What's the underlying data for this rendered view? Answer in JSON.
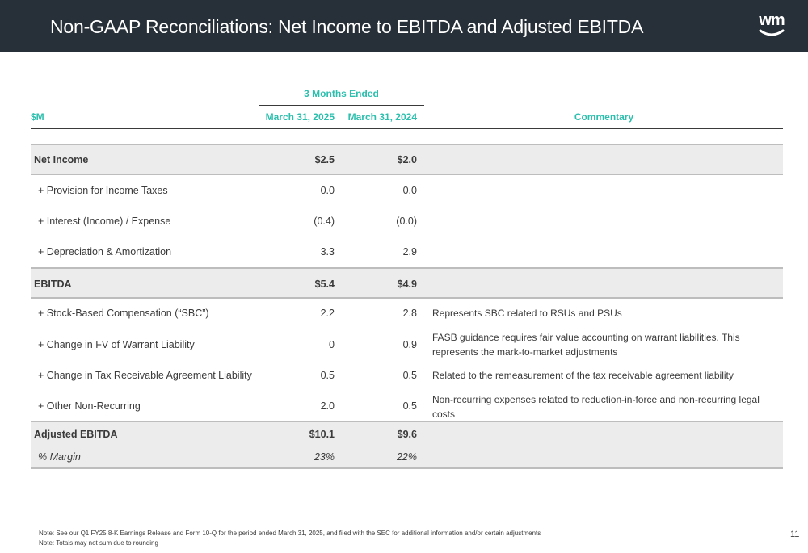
{
  "header": {
    "title": "Non-GAAP Reconciliations: Net Income to EBITDA and Adjusted EBITDA",
    "logo_text": "wm",
    "background_color": "#273038"
  },
  "table": {
    "group_header": "3 Months Ended",
    "columns": {
      "label": "$M",
      "period1": "March 31, 2025",
      "period2": "March 31, 2024",
      "commentary": "Commentary"
    },
    "accent_color": "#2bbfae",
    "rows": [
      {
        "label": "Net Income",
        "v1": "$2.5",
        "v2": "$2.0",
        "commentary": ""
      },
      {
        "label": "+ Provision for Income Taxes",
        "v1": "0.0",
        "v2": "0.0",
        "commentary": ""
      },
      {
        "label": "+ Interest (Income) / Expense",
        "v1": "(0.4)",
        "v2": "(0.0)",
        "commentary": ""
      },
      {
        "label": "+ Depreciation & Amortization",
        "v1": "3.3",
        "v2": "2.9",
        "commentary": ""
      },
      {
        "label": "EBITDA",
        "v1": "$5.4",
        "v2": "$4.9",
        "commentary": ""
      },
      {
        "label": "+ Stock-Based Compensation (“SBC”)",
        "v1": "2.2",
        "v2": "2.8",
        "commentary": "Represents SBC related to RSUs and PSUs"
      },
      {
        "label": "+ Change in FV of Warrant Liability",
        "v1": "0",
        "v2": "0.9",
        "commentary": "FASB guidance requires fair value accounting on warrant liabilities. This represents the mark-to-market adjustments"
      },
      {
        "label": "+ Change in Tax Receivable Agreement Liability",
        "v1": "0.5",
        "v2": "0.5",
        "commentary": "Related to the remeasurement of the tax receivable agreement liability"
      },
      {
        "label": "+ Other Non-Recurring",
        "v1": "2.0",
        "v2": "0.5",
        "commentary": "Non-recurring expenses related to reduction-in-force and non-recurring legal costs"
      },
      {
        "label": "Adjusted EBITDA",
        "v1": "$10.1",
        "v2": "$9.6",
        "commentary": ""
      },
      {
        "label": "% Margin",
        "v1": "23%",
        "v2": "22%",
        "commentary": ""
      }
    ]
  },
  "footer": {
    "note1": "Note: See our Q1 FY25 8-K Earnings Release and Form 10-Q for the period ended March 31, 2025, and filed with the SEC for additional information and/or certain adjustments",
    "note2": "Note: Totals may not sum due to rounding",
    "page_number": "11"
  }
}
